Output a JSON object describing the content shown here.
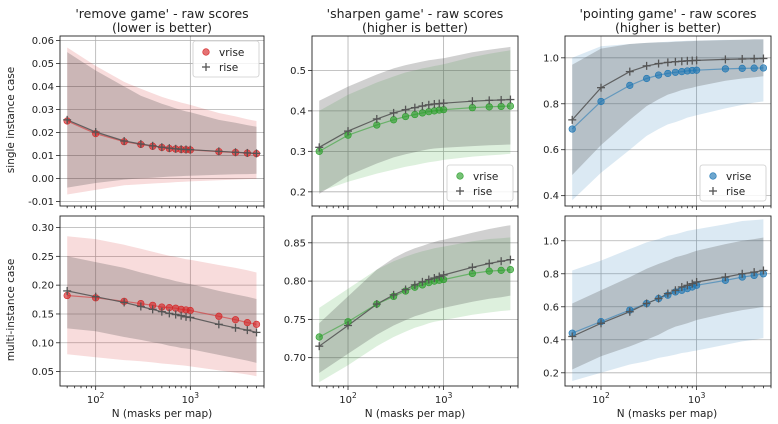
{
  "colors": {
    "red": "#d62728",
    "green": "#2ca02c",
    "blue": "#1f77b4",
    "rise": "#555555"
  },
  "row_labels": [
    "single instance case",
    "multi-instance case"
  ],
  "xlabel": "N (masks per map)",
  "chart_data": [
    {
      "type": "scatter",
      "title": "'remove game' - raw scores\n(lower is better)",
      "xscale": "log",
      "xlim": [
        42,
        6000
      ],
      "ylim": [
        -0.012,
        0.062
      ],
      "yticks": [
        -0.01,
        0.0,
        0.01,
        0.02,
        0.03,
        0.04,
        0.05,
        0.06
      ],
      "tick_format": "%.2f",
      "color": "red",
      "legend": "top-right",
      "x": [
        50,
        100,
        200,
        300,
        400,
        500,
        600,
        700,
        800,
        900,
        1000,
        2000,
        3000,
        4000,
        5000
      ],
      "series": [
        {
          "name": "vrise",
          "values": [
            0.025,
            0.0195,
            0.016,
            0.0148,
            0.014,
            0.0135,
            0.013,
            0.0128,
            0.0126,
            0.0125,
            0.0124,
            0.0117,
            0.0113,
            0.011,
            0.0108
          ],
          "band_upper": [
            0.057,
            0.049,
            0.042,
            0.039,
            0.037,
            0.0355,
            0.0345,
            0.0337,
            0.033,
            0.0325,
            0.032,
            0.0285,
            0.027,
            0.0258,
            0.025
          ],
          "band_lower": [
            -0.007,
            -0.005,
            -0.003,
            -0.0025,
            -0.0022,
            -0.002,
            -0.0018,
            -0.0016,
            -0.0015,
            -0.0014,
            -0.0013,
            -0.0008,
            -0.0005,
            -0.0003,
            -0.0002
          ]
        },
        {
          "name": "rise",
          "values": [
            0.0255,
            0.0202,
            0.0163,
            0.015,
            0.0142,
            0.0136,
            0.0132,
            0.0129,
            0.0127,
            0.0126,
            0.0125,
            0.0118,
            0.0114,
            0.0111,
            0.0109
          ],
          "band_upper": [
            0.055,
            0.047,
            0.04,
            0.036,
            0.034,
            0.0325,
            0.0315,
            0.0305,
            0.0298,
            0.0292,
            0.0288,
            0.0255,
            0.0242,
            0.0232,
            0.0225
          ],
          "band_lower": [
            -0.004,
            -0.002,
            -0.0005,
            0.0,
            0.0003,
            0.0006,
            0.0008,
            0.0009,
            0.001,
            0.0011,
            0.0012,
            0.0016,
            0.0018,
            0.0019,
            0.002
          ]
        }
      ]
    },
    {
      "type": "scatter",
      "title": "'sharpen game' - raw scores\n(higher is better)",
      "xscale": "log",
      "xlim": [
        42,
        6000
      ],
      "ylim": [
        0.165,
        0.585
      ],
      "yticks": [
        0.2,
        0.3,
        0.4,
        0.5
      ],
      "tick_format": "%.1f",
      "color": "green",
      "legend": "bottom-right",
      "x": [
        50,
        100,
        200,
        300,
        400,
        500,
        600,
        700,
        800,
        900,
        1000,
        2000,
        3000,
        4000,
        5000
      ],
      "series": [
        {
          "name": "vrise",
          "values": [
            0.3,
            0.34,
            0.365,
            0.378,
            0.386,
            0.391,
            0.395,
            0.398,
            0.4,
            0.402,
            0.403,
            0.408,
            0.41,
            0.411,
            0.412
          ],
          "band_upper": [
            0.4,
            0.44,
            0.47,
            0.485,
            0.495,
            0.5,
            0.505,
            0.508,
            0.511,
            0.513,
            0.515,
            0.533,
            0.541,
            0.546,
            0.55
          ],
          "band_lower": [
            0.2,
            0.225,
            0.245,
            0.255,
            0.262,
            0.266,
            0.27,
            0.273,
            0.275,
            0.277,
            0.279,
            0.287,
            0.29,
            0.292,
            0.294
          ]
        },
        {
          "name": "rise",
          "values": [
            0.31,
            0.35,
            0.38,
            0.395,
            0.403,
            0.408,
            0.412,
            0.415,
            0.417,
            0.418,
            0.419,
            0.424,
            0.426,
            0.427,
            0.428
          ],
          "band_upper": [
            0.425,
            0.46,
            0.49,
            0.505,
            0.513,
            0.518,
            0.522,
            0.525,
            0.527,
            0.529,
            0.53,
            0.545,
            0.551,
            0.555,
            0.558
          ],
          "band_lower": [
            0.195,
            0.24,
            0.27,
            0.285,
            0.293,
            0.298,
            0.302,
            0.305,
            0.307,
            0.308,
            0.309,
            0.313,
            0.315,
            0.316,
            0.317
          ]
        }
      ]
    },
    {
      "type": "scatter",
      "title": "'pointing game' - raw scores\n(higher is better)",
      "xscale": "log",
      "xlim": [
        42,
        6000
      ],
      "ylim": [
        0.355,
        1.095
      ],
      "yticks": [
        0.4,
        0.6,
        0.8,
        1.0
      ],
      "tick_format": "%.1f",
      "color": "blue",
      "legend": "bottom-right",
      "x": [
        50,
        100,
        200,
        300,
        400,
        500,
        600,
        700,
        800,
        900,
        1000,
        2000,
        3000,
        4000,
        5000
      ],
      "series": [
        {
          "name": "vrise",
          "values": [
            0.69,
            0.81,
            0.88,
            0.91,
            0.925,
            0.932,
            0.937,
            0.94,
            0.943,
            0.945,
            0.946,
            0.952,
            0.954,
            0.955,
            0.956
          ],
          "band_upper": [
            1.0,
            1.05,
            1.06,
            1.065,
            1.068,
            1.07,
            1.072,
            1.073,
            1.074,
            1.075,
            1.075,
            1.078,
            1.079,
            1.08,
            1.08
          ],
          "band_lower": [
            0.38,
            0.5,
            0.6,
            0.66,
            0.69,
            0.71,
            0.72,
            0.73,
            0.74,
            0.745,
            0.75,
            0.78,
            0.795,
            0.805,
            0.81
          ]
        },
        {
          "name": "rise",
          "values": [
            0.73,
            0.87,
            0.94,
            0.965,
            0.975,
            0.98,
            0.983,
            0.985,
            0.987,
            0.988,
            0.989,
            0.993,
            0.995,
            0.996,
            0.997
          ],
          "band_upper": [
            0.97,
            1.04,
            1.06,
            1.065,
            1.067,
            1.068,
            1.07,
            1.071,
            1.072,
            1.073,
            1.074,
            1.077,
            1.079,
            1.08,
            1.08
          ],
          "band_lower": [
            0.49,
            0.62,
            0.73,
            0.79,
            0.82,
            0.84,
            0.85,
            0.86,
            0.865,
            0.87,
            0.875,
            0.9,
            0.91,
            0.915,
            0.92
          ]
        }
      ]
    },
    {
      "type": "scatter",
      "title": "",
      "xscale": "log",
      "xlim": [
        42,
        6000
      ],
      "ylim": [
        0.025,
        0.32
      ],
      "yticks": [
        0.05,
        0.1,
        0.15,
        0.2,
        0.25,
        0.3
      ],
      "tick_format": "%.2f",
      "color": "red",
      "legend": "none",
      "x": [
        50,
        100,
        200,
        300,
        400,
        500,
        600,
        700,
        800,
        900,
        1000,
        2000,
        3000,
        4000,
        5000
      ],
      "series": [
        {
          "name": "vrise",
          "values": [
            0.182,
            0.178,
            0.172,
            0.168,
            0.165,
            0.162,
            0.161,
            0.16,
            0.158,
            0.157,
            0.156,
            0.146,
            0.14,
            0.135,
            0.132
          ],
          "band_upper": [
            0.285,
            0.28,
            0.27,
            0.263,
            0.258,
            0.254,
            0.251,
            0.249,
            0.247,
            0.245,
            0.244,
            0.235,
            0.23,
            0.226,
            0.222
          ],
          "band_lower": [
            0.08,
            0.075,
            0.07,
            0.068,
            0.066,
            0.064,
            0.063,
            0.062,
            0.061,
            0.06,
            0.059,
            0.052,
            0.048,
            0.045,
            0.042
          ]
        },
        {
          "name": "rise",
          "values": [
            0.19,
            0.18,
            0.17,
            0.163,
            0.158,
            0.154,
            0.151,
            0.149,
            0.147,
            0.145,
            0.144,
            0.132,
            0.126,
            0.122,
            0.118
          ],
          "band_upper": [
            0.25,
            0.24,
            0.23,
            0.222,
            0.217,
            0.213,
            0.21,
            0.207,
            0.205,
            0.203,
            0.202,
            0.19,
            0.184,
            0.18,
            0.176
          ],
          "band_lower": [
            0.125,
            0.12,
            0.11,
            0.105,
            0.101,
            0.098,
            0.095,
            0.093,
            0.091,
            0.09,
            0.089,
            0.079,
            0.073,
            0.069,
            0.065
          ]
        }
      ]
    },
    {
      "type": "scatter",
      "title": "",
      "xscale": "log",
      "xlim": [
        42,
        6000
      ],
      "ylim": [
        0.663,
        0.885
      ],
      "yticks": [
        0.7,
        0.75,
        0.8,
        0.85
      ],
      "tick_format": "%.2f",
      "color": "green",
      "legend": "none",
      "x": [
        50,
        100,
        200,
        300,
        400,
        500,
        600,
        700,
        800,
        900,
        1000,
        2000,
        3000,
        4000,
        5000
      ],
      "series": [
        {
          "name": "vrise",
          "values": [
            0.727,
            0.747,
            0.77,
            0.78,
            0.787,
            0.792,
            0.795,
            0.798,
            0.8,
            0.801,
            0.802,
            0.81,
            0.813,
            0.814,
            0.815
          ],
          "band_upper": [
            0.765,
            0.79,
            0.815,
            0.826,
            0.832,
            0.836,
            0.839,
            0.841,
            0.843,
            0.844,
            0.845,
            0.852,
            0.855,
            0.856,
            0.857
          ],
          "band_lower": [
            0.668,
            0.69,
            0.715,
            0.727,
            0.734,
            0.739,
            0.742,
            0.745,
            0.747,
            0.748,
            0.749,
            0.756,
            0.759,
            0.761,
            0.762
          ]
        },
        {
          "name": "rise",
          "values": [
            0.715,
            0.742,
            0.77,
            0.782,
            0.789,
            0.795,
            0.799,
            0.802,
            0.804,
            0.806,
            0.808,
            0.818,
            0.823,
            0.826,
            0.828
          ],
          "band_upper": [
            0.745,
            0.78,
            0.815,
            0.83,
            0.838,
            0.843,
            0.846,
            0.849,
            0.851,
            0.853,
            0.854,
            0.863,
            0.868,
            0.871,
            0.873
          ],
          "band_lower": [
            0.68,
            0.705,
            0.73,
            0.742,
            0.749,
            0.754,
            0.757,
            0.76,
            0.762,
            0.764,
            0.765,
            0.773,
            0.777,
            0.779,
            0.781
          ]
        }
      ]
    },
    {
      "type": "scatter",
      "title": "",
      "xscale": "log",
      "xlim": [
        42,
        6000
      ],
      "ylim": [
        0.12,
        1.15
      ],
      "yticks": [
        0.2,
        0.4,
        0.6,
        0.8,
        1.0
      ],
      "tick_format": "%.1f",
      "color": "blue",
      "legend": "none",
      "x": [
        50,
        100,
        200,
        300,
        400,
        500,
        600,
        700,
        800,
        900,
        1000,
        2000,
        3000,
        4000,
        5000
      ],
      "series": [
        {
          "name": "vrise",
          "values": [
            0.44,
            0.51,
            0.58,
            0.62,
            0.65,
            0.67,
            0.69,
            0.7,
            0.71,
            0.72,
            0.73,
            0.76,
            0.78,
            0.79,
            0.8
          ],
          "band_upper": [
            0.82,
            0.88,
            0.95,
            0.99,
            1.01,
            1.03,
            1.04,
            1.05,
            1.06,
            1.065,
            1.07,
            1.1,
            1.12,
            1.125,
            1.13
          ],
          "band_lower": [
            0.15,
            0.2,
            0.25,
            0.27,
            0.29,
            0.3,
            0.31,
            0.32,
            0.325,
            0.33,
            0.335,
            0.37,
            0.39,
            0.4,
            0.41
          ]
        },
        {
          "name": "rise",
          "values": [
            0.42,
            0.5,
            0.57,
            0.62,
            0.65,
            0.68,
            0.7,
            0.72,
            0.73,
            0.74,
            0.75,
            0.78,
            0.8,
            0.81,
            0.82
          ],
          "band_upper": [
            0.62,
            0.7,
            0.78,
            0.83,
            0.86,
            0.88,
            0.9,
            0.91,
            0.92,
            0.93,
            0.94,
            0.98,
            1.0,
            1.01,
            1.02
          ],
          "band_lower": [
            0.22,
            0.3,
            0.36,
            0.4,
            0.43,
            0.46,
            0.48,
            0.49,
            0.5,
            0.51,
            0.52,
            0.56,
            0.58,
            0.59,
            0.6
          ]
        }
      ]
    }
  ]
}
